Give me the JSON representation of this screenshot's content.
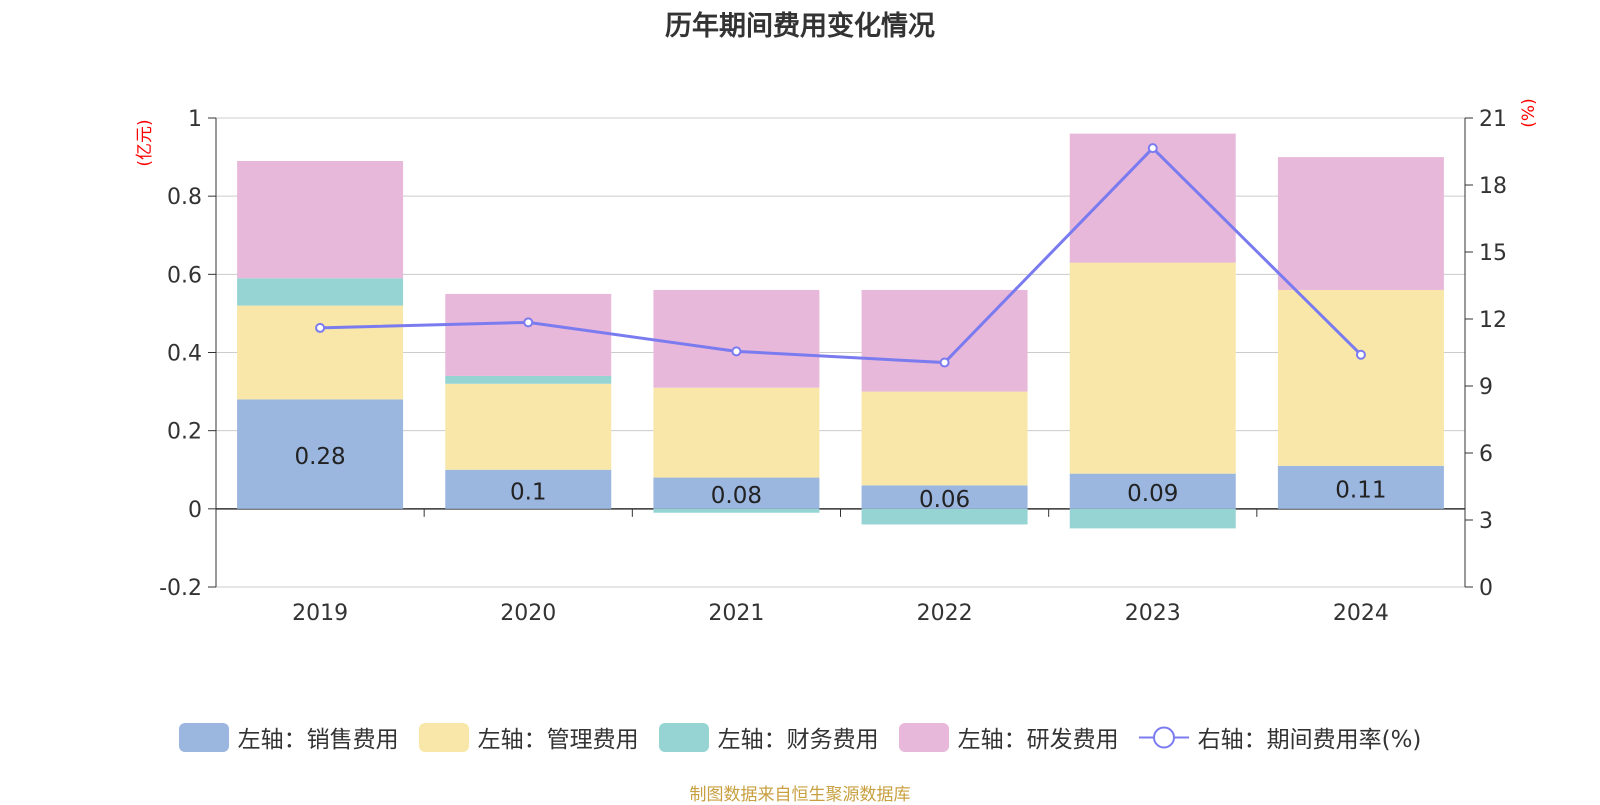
{
  "chart_data": {
    "type": "bar",
    "title": "历年期间费用变化情况",
    "categories": [
      "2019",
      "2020",
      "2021",
      "2022",
      "2023",
      "2024"
    ],
    "left_axis": {
      "unit_label": "(亿元)",
      "min": -0.2,
      "max": 1,
      "ticks": [
        "-0.2",
        "0",
        "0.2",
        "0.4",
        "0.6",
        "0.8",
        "1"
      ]
    },
    "right_axis": {
      "unit_label": "(%)",
      "min": 0,
      "max": 21,
      "ticks": [
        "0",
        "3",
        "6",
        "9",
        "12",
        "15",
        "18",
        "21"
      ]
    },
    "series": [
      {
        "name": "左轴：销售费用",
        "type": "bar",
        "color": "#9bb7e0",
        "values": [
          0.28,
          0.1,
          0.08,
          0.06,
          0.09,
          0.11
        ],
        "labels": [
          "0.28",
          "0.1",
          "0.08",
          "0.06",
          "0.09",
          "0.11"
        ]
      },
      {
        "name": "左轴：管理费用",
        "type": "bar",
        "color": "#f8e7a8",
        "values": [
          0.24,
          0.22,
          0.23,
          0.24,
          0.54,
          0.45
        ]
      },
      {
        "name": "左轴：财务费用",
        "type": "bar",
        "color": "#96d4d4",
        "values": [
          0.07,
          0.02,
          -0.01,
          -0.04,
          -0.05,
          0
        ]
      },
      {
        "name": "左轴：研发费用",
        "type": "bar",
        "color": "#e8b8da",
        "values": [
          0.3,
          0.21,
          0.25,
          0.26,
          0.33,
          0.34
        ]
      },
      {
        "name": "右轴：期间费用率(%)",
        "type": "line",
        "color": "#7b7bf0",
        "values": [
          11.6,
          11.85,
          10.55,
          10.05,
          19.65,
          10.4
        ]
      }
    ]
  },
  "source": {
    "text": "制图数据来自恒生聚源数据库",
    "color": "#c8a040"
  },
  "colors": {
    "axis_unit": "#ff0000",
    "grid": "#cccccc",
    "axis": "#333333"
  }
}
